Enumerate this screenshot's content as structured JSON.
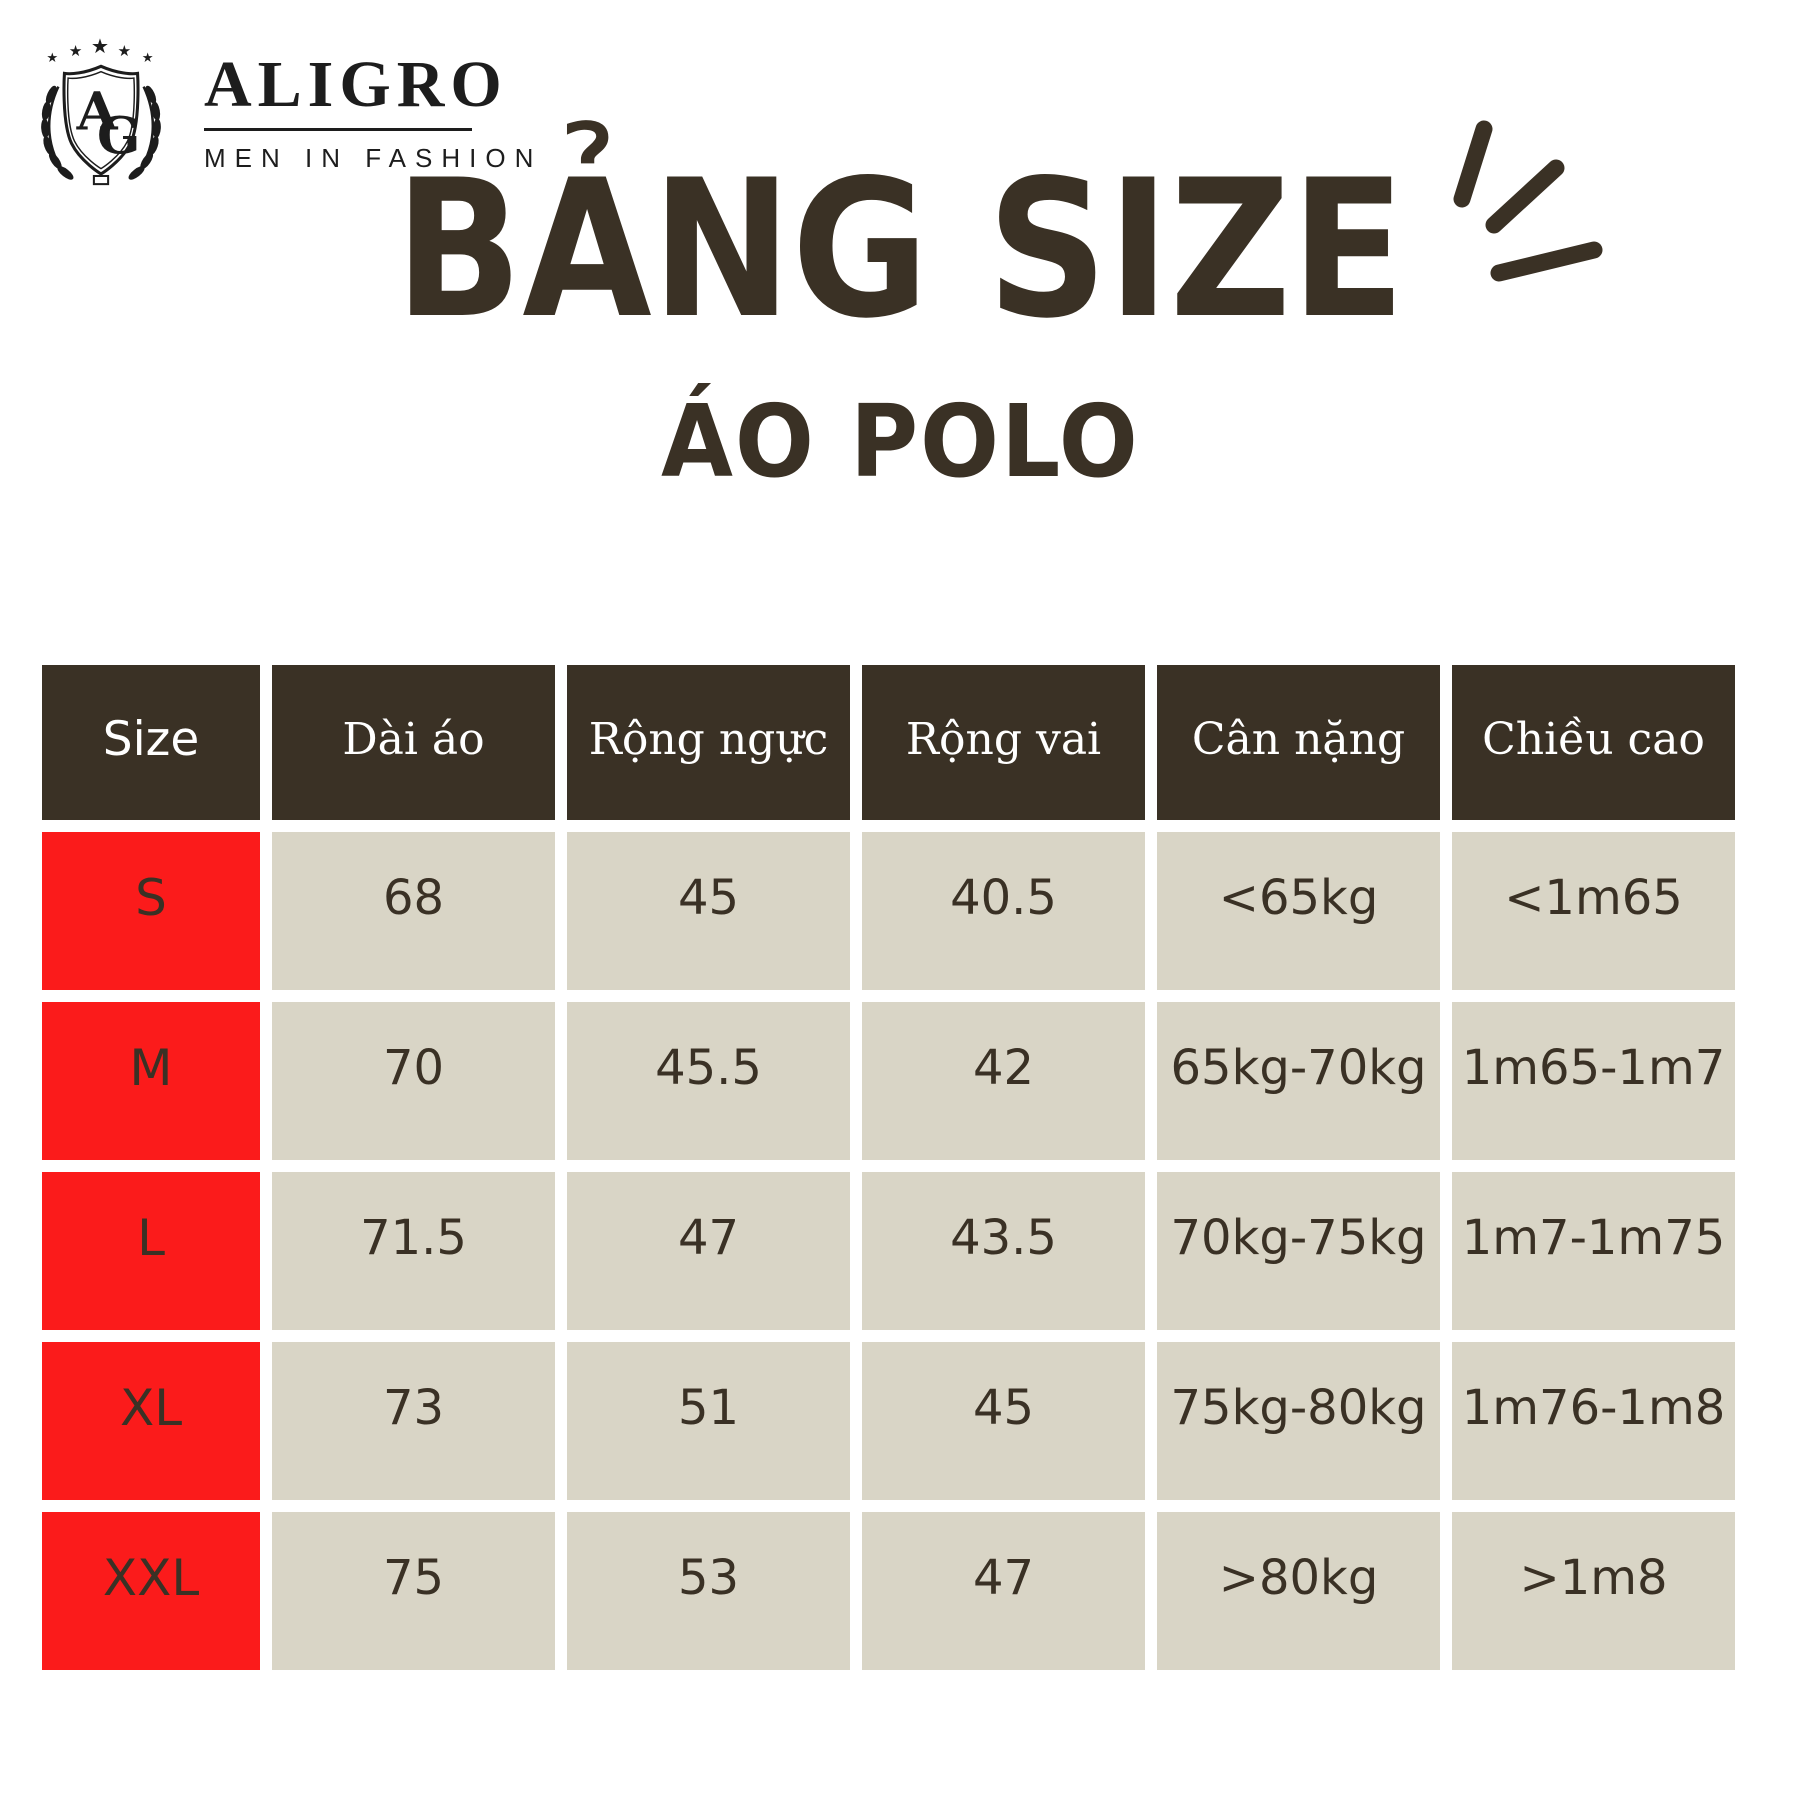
{
  "brand": {
    "name": "ALIGRO",
    "tagline": "MEN IN FASHION",
    "monogram_a": "A",
    "monogram_g": "G"
  },
  "title": "BẢNG SIZE",
  "subtitle": "ÁO POLO",
  "colors": {
    "dark_brown": "#3a3125",
    "red": "#fb1b1b",
    "beige": "#d9d5c6",
    "logo_black": "#1d1d1d",
    "background": "#ffffff"
  },
  "chart_data": {
    "type": "table",
    "title": "BẢNG SIZE",
    "subtitle": "ÁO POLO",
    "columns": [
      "Size",
      "Dài áo",
      "Rộng ngực",
      "Rộng vai",
      "Cân nặng",
      "Chiều cao"
    ],
    "rows": [
      {
        "size": "S",
        "values": [
          "68",
          "45",
          "40.5",
          "<65kg",
          "<1m65"
        ]
      },
      {
        "size": "M",
        "values": [
          "70",
          "45.5",
          "42",
          "65kg-70kg",
          "1m65-1m7"
        ]
      },
      {
        "size": "L",
        "values": [
          "71.5",
          "47",
          "43.5",
          "70kg-75kg",
          "1m7-1m75"
        ]
      },
      {
        "size": "XL",
        "values": [
          "73",
          "51",
          "45",
          "75kg-80kg",
          "1m76-1m8"
        ]
      },
      {
        "size": "XXL",
        "values": [
          "75",
          "53",
          "47",
          ">80kg",
          ">1m8"
        ]
      }
    ]
  }
}
